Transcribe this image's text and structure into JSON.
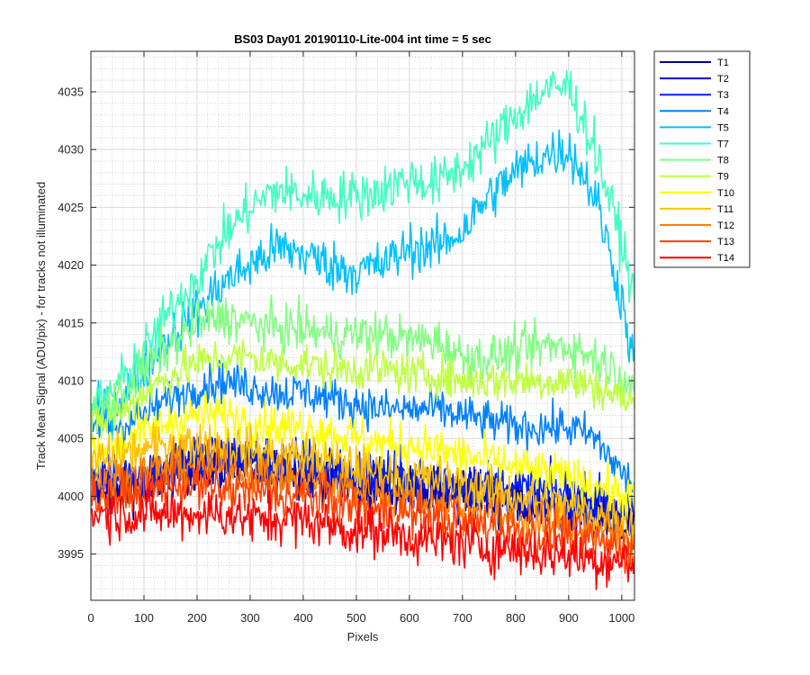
{
  "chart_data": {
    "type": "line",
    "title": "BS03 Day01 20190110-Lite-004 int time = 5 sec",
    "xlabel": "Pixels",
    "ylabel": "Track Mean Signal (ADU/pix) - for tracks not illuminated",
    "xlim": [
      0,
      1024
    ],
    "ylim": [
      3991,
      4038.5
    ],
    "x_ticks": [
      0,
      100,
      200,
      300,
      400,
      500,
      600,
      700,
      800,
      900,
      1000
    ],
    "y_ticks": [
      3995,
      4000,
      4005,
      4010,
      4015,
      4020,
      4025,
      4030,
      4035
    ],
    "grid": true,
    "minor_grid": true,
    "legend_position": "outside-right",
    "x_sample": [
      0,
      50,
      100,
      150,
      200,
      250,
      300,
      350,
      400,
      450,
      500,
      550,
      600,
      650,
      700,
      750,
      800,
      850,
      900,
      950,
      1000,
      1024
    ],
    "series": [
      {
        "name": "T1",
        "color": "#00008F",
        "values": [
          4001,
          4000.5,
          4001,
          4002,
          4002.5,
          4002.5,
          4002.5,
          4002,
          4002,
          4001.5,
          4001,
          4001,
          4000.5,
          4000.5,
          4000,
          4000,
          3999.5,
          3999.5,
          3999,
          3998.5,
          3998,
          3997.5
        ]
      },
      {
        "name": "T2",
        "color": "#0000D0",
        "values": [
          4001,
          4000.5,
          4001,
          4002,
          4002.5,
          4002.5,
          4002.5,
          4002,
          4002,
          4001.5,
          4001,
          4001,
          4000.5,
          4000.5,
          4000,
          4000,
          3999.5,
          3999.5,
          3999,
          3998.5,
          3998,
          3997.5
        ]
      },
      {
        "name": "T3",
        "color": "#0020FF",
        "values": [
          4002,
          4001.5,
          4002,
          4003,
          4003.5,
          4003.5,
          4003.5,
          4003,
          4003,
          4002.5,
          4002,
          4002,
          4001.5,
          4001.5,
          4001,
          4001,
          4000.5,
          4000.5,
          4000,
          3999.5,
          3999,
          3998.5
        ]
      },
      {
        "name": "T4",
        "color": "#0080FF",
        "values": [
          4006,
          4006,
          4007,
          4008.5,
          4009.5,
          4010,
          4009.5,
          4009,
          4009,
          4008.5,
          4008,
          4007.5,
          4007.5,
          4007.5,
          4007,
          4006.5,
          4006,
          4006,
          4006,
          4005,
          4002,
          4001
        ]
      },
      {
        "name": "T5",
        "color": "#00C0FF",
        "values": [
          4006.5,
          4008,
          4011,
          4014,
          4016,
          4018.5,
          4020,
          4021.5,
          4021,
          4020,
          4019.5,
          4020,
          4021.5,
          4021.5,
          4023,
          4026,
          4028,
          4029.5,
          4030,
          4026,
          4017,
          4011
        ]
      },
      {
        "name": "T7",
        "color": "#40FFC0",
        "values": [
          4007.5,
          4009.5,
          4012.5,
          4016,
          4019,
          4022.5,
          4025,
          4026.5,
          4026,
          4026,
          4026,
          4026.5,
          4027.5,
          4027,
          4028.5,
          4030.5,
          4033,
          4035,
          4035.5,
          4030,
          4022,
          4017
        ]
      },
      {
        "name": "T8",
        "color": "#80FF80",
        "values": [
          4007,
          4008.5,
          4011,
          4013,
          4015,
          4015.5,
          4015,
          4014.5,
          4014.5,
          4014,
          4014,
          4014,
          4013.5,
          4013.5,
          4012,
          4012,
          4012.5,
          4013,
          4013,
          4012,
          4010.5,
          4009.5
        ]
      },
      {
        "name": "T9",
        "color": "#BFFF40",
        "values": [
          4006,
          4007,
          4009,
          4010.5,
          4011.5,
          4012,
          4012,
          4011.5,
          4011.5,
          4011,
          4011,
          4011,
          4010.5,
          4010.5,
          4010,
          4010,
          4010,
          4010,
          4010,
          4009.5,
          4008.5,
          4008
        ]
      },
      {
        "name": "T10",
        "color": "#FFFF00",
        "values": [
          4004,
          4004.5,
          4005.5,
          4006.5,
          4007,
          4007,
          4006.5,
          4006,
          4006,
          4005.5,
          4005,
          4004.5,
          4004.5,
          4004,
          4003.5,
          4003,
          4002.5,
          4002,
          4001.5,
          4001,
          4000,
          3999.5
        ]
      },
      {
        "name": "T11",
        "color": "#FFC000",
        "values": [
          4003,
          4003.5,
          4004,
          4004.5,
          4004.5,
          4004.5,
          4004,
          4003.5,
          4003.5,
          4003,
          4002.5,
          4002,
          4001.5,
          4001.5,
          4001,
          4000.5,
          4000,
          3999.5,
          3999,
          3998.5,
          3998,
          3997.5
        ]
      },
      {
        "name": "T12",
        "color": "#FF8000",
        "values": [
          4001.5,
          4001.5,
          4002,
          4002.5,
          4002.5,
          4002.5,
          4002,
          4001.5,
          4001.5,
          4001,
          4000.5,
          4000,
          3999.5,
          3999.5,
          3999,
          3998.5,
          3998,
          3997.5,
          3997.5,
          3997,
          3996.5,
          3996
        ]
      },
      {
        "name": "T13",
        "color": "#FF4000",
        "values": [
          4000,
          4000,
          4000.5,
          4001,
          4001,
          4000.5,
          4000.5,
          4000,
          4000,
          3999.5,
          3999,
          3998.5,
          3998.5,
          3998,
          3997.5,
          3997.5,
          3997,
          3996.5,
          3996.5,
          3996,
          3995.5,
          3995.5
        ]
      },
      {
        "name": "T14",
        "color": "#FF0000",
        "values": [
          3998.5,
          3998.5,
          3998.5,
          3998.5,
          3998.5,
          3998.5,
          3998,
          3998,
          3998,
          3997.5,
          3997,
          3997,
          3996.5,
          3996,
          3996,
          3995.5,
          3995.5,
          3995,
          3995,
          3994.5,
          3994.5,
          3994
        ]
      }
    ]
  }
}
